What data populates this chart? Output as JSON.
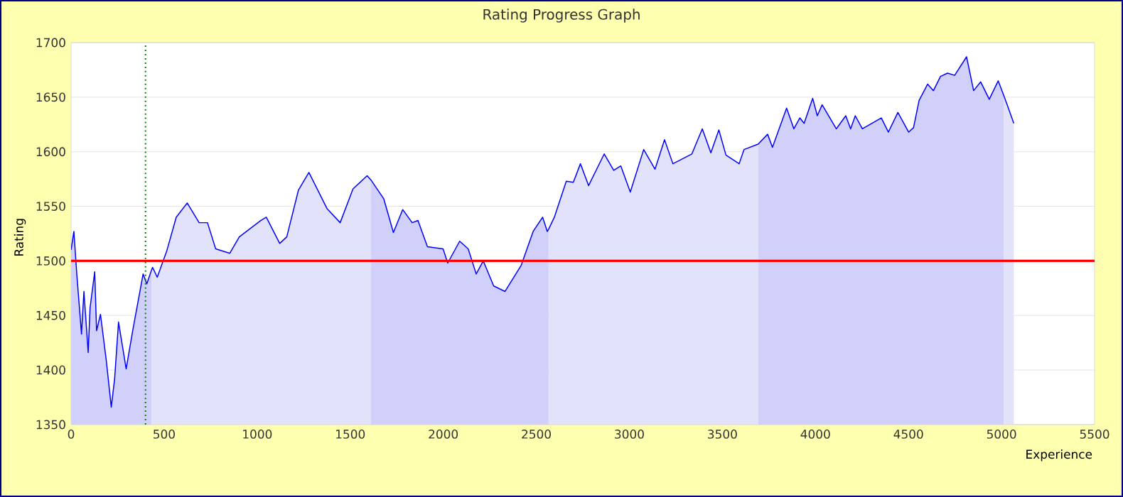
{
  "chart_data": {
    "type": "line",
    "title": "Rating Progress Graph",
    "xlabel": "Experience",
    "ylabel": "Rating",
    "xlim": [
      0,
      5500
    ],
    "xticks": [
      0,
      500,
      1000,
      1500,
      2000,
      2500,
      3000,
      3500,
      4000,
      4500,
      5000,
      5500
    ],
    "ylim": [
      1350,
      1700
    ],
    "yticks": [
      1350,
      1400,
      1450,
      1500,
      1550,
      1600,
      1650,
      1700
    ],
    "grid": "y",
    "ref_lines": [
      {
        "axis": "y",
        "value": 1500,
        "color": "#ff0000",
        "line_style": "solid"
      },
      {
        "axis": "x",
        "value": 400,
        "color": "#008000",
        "line_style": "dotted"
      }
    ],
    "series": [
      {
        "type": "area",
        "color": "#d0d0fa",
        "x": [
          0,
          15,
          31,
          56,
          69,
          92,
          102,
          127,
          137,
          158,
          189,
          216,
          234,
          255,
          296,
          331,
          387,
          407,
          433
        ],
        "values": [
          1510,
          1527,
          1487,
          1433,
          1472,
          1416,
          1457,
          1490,
          1436,
          1451,
          1409,
          1366,
          1392,
          1444,
          1401,
          1436,
          1488,
          1479,
          1492
        ]
      },
      {
        "type": "area",
        "color": "#e2e2fa",
        "x": [
          433,
          438,
          463,
          514,
          565,
          624,
          688,
          733,
          777,
          853,
          904,
          1019,
          1049,
          1121,
          1159,
          1222,
          1278,
          1375,
          1446,
          1515,
          1591,
          1612
        ],
        "values": [
          1492,
          1494,
          1485,
          1509,
          1540,
          1553,
          1535,
          1535,
          1511,
          1507,
          1522,
          1537,
          1540,
          1516,
          1522,
          1565,
          1581,
          1548,
          1535,
          1566,
          1578,
          1574
        ]
      },
      {
        "type": "area",
        "color": "#d0d0fa",
        "x": [
          1612,
          1680,
          1732,
          1782,
          1833,
          1864,
          1915,
          1999,
          2024,
          2088,
          2134,
          2177,
          2215,
          2271,
          2332,
          2419,
          2483,
          2534,
          2559,
          2566
        ],
        "values": [
          1574,
          1557,
          1526,
          1547,
          1535,
          1537,
          1513,
          1511,
          1498,
          1518,
          1511,
          1488,
          1500,
          1477,
          1472,
          1496,
          1527,
          1540,
          1527,
          1529
        ]
      },
      {
        "type": "area",
        "color": "#e2e2fa",
        "x": [
          2566,
          2597,
          2661,
          2699,
          2737,
          2781,
          2865,
          2916,
          2954,
          3005,
          3077,
          3138,
          3189,
          3234,
          3336,
          3392,
          3438,
          3481,
          3519,
          3590,
          3616,
          3692
        ],
        "values": [
          1529,
          1540,
          1573,
          1572,
          1589,
          1569,
          1598,
          1583,
          1587,
          1563,
          1602,
          1584,
          1611,
          1589,
          1598,
          1621,
          1599,
          1620,
          1597,
          1589,
          1602,
          1607
        ]
      },
      {
        "type": "area",
        "color": "#d0d0fa",
        "x": [
          3692,
          3743,
          3769,
          3845,
          3884,
          3916,
          3939,
          3985,
          4010,
          4036,
          4112,
          4163,
          4189,
          4214,
          4252,
          4354,
          4392,
          4443,
          4501,
          4527,
          4557,
          4603,
          4634,
          4672,
          4710,
          4748,
          4812,
          4850,
          4888,
          4934,
          4982,
          5011
        ],
        "values": [
          1607,
          1616,
          1604,
          1640,
          1621,
          1631,
          1626,
          1649,
          1633,
          1643,
          1621,
          1633,
          1621,
          1633,
          1621,
          1631,
          1618,
          1636,
          1618,
          1622,
          1647,
          1662,
          1656,
          1669,
          1672,
          1670,
          1687,
          1656,
          1664,
          1648,
          1665,
          1652
        ]
      },
      {
        "type": "area",
        "color": "#e2e2fa",
        "x": [
          5011,
          5028,
          5066
        ],
        "values": [
          1652,
          1644,
          1626
        ]
      },
      {
        "color": "#0000ff",
        "x": [
          0,
          15,
          31,
          56,
          69,
          92,
          102,
          127,
          137,
          158,
          189,
          216,
          234,
          255,
          296,
          331,
          387,
          407,
          433,
          438,
          463,
          514,
          565,
          624,
          688,
          733,
          777,
          853,
          904,
          1019,
          1049,
          1121,
          1159,
          1222,
          1278,
          1375,
          1446,
          1515,
          1591,
          1612,
          1680,
          1732,
          1782,
          1833,
          1864,
          1915,
          1999,
          2024,
          2088,
          2134,
          2177,
          2215,
          2271,
          2332,
          2419,
          2483,
          2534,
          2559,
          2566,
          2597,
          2661,
          2699,
          2737,
          2781,
          2865,
          2916,
          2954,
          3005,
          3077,
          3138,
          3189,
          3234,
          3336,
          3392,
          3438,
          3481,
          3519,
          3590,
          3616,
          3692,
          3743,
          3769,
          3845,
          3884,
          3916,
          3939,
          3985,
          4010,
          4036,
          4112,
          4163,
          4189,
          4214,
          4252,
          4354,
          4392,
          4443,
          4501,
          4527,
          4557,
          4603,
          4634,
          4672,
          4710,
          4748,
          4812,
          4850,
          4888,
          4934,
          4982,
          5011,
          5028,
          5066
        ],
        "values": [
          1510,
          1527,
          1487,
          1433,
          1472,
          1416,
          1457,
          1490,
          1436,
          1451,
          1409,
          1366,
          1392,
          1444,
          1401,
          1436,
          1488,
          1479,
          1492,
          1494,
          1485,
          1509,
          1540,
          1553,
          1535,
          1535,
          1511,
          1507,
          1522,
          1537,
          1540,
          1516,
          1522,
          1565,
          1581,
          1548,
          1535,
          1566,
          1578,
          1574,
          1557,
          1526,
          1547,
          1535,
          1537,
          1513,
          1511,
          1498,
          1518,
          1511,
          1488,
          1500,
          1477,
          1472,
          1496,
          1527,
          1540,
          1527,
          1529,
          1540,
          1573,
          1572,
          1589,
          1569,
          1598,
          1583,
          1587,
          1563,
          1602,
          1584,
          1611,
          1589,
          1598,
          1621,
          1599,
          1620,
          1597,
          1589,
          1602,
          1607,
          1616,
          1604,
          1640,
          1621,
          1631,
          1626,
          1649,
          1633,
          1643,
          1621,
          1633,
          1621,
          1633,
          1621,
          1631,
          1618,
          1636,
          1618,
          1622,
          1647,
          1662,
          1656,
          1669,
          1672,
          1670,
          1687,
          1656,
          1664,
          1648,
          1665,
          1652,
          1644,
          1626
        ]
      }
    ]
  }
}
